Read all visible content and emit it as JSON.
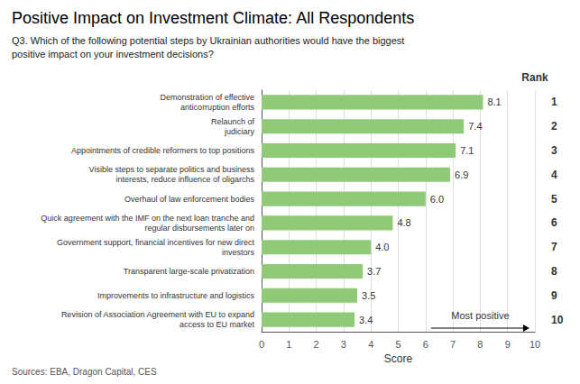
{
  "chart_data": {
    "type": "bar",
    "orientation": "horizontal",
    "title": "Positive Impact on Investment Climate: All Respondents",
    "subtitle": "Q3. Which of the following potential steps by Ukrainian authorities would have the biggest\npositive impact on your investment decisions?",
    "xlabel": "Score",
    "source": "Sources: EBA, Dragon Capital, CES",
    "categories": [
      "Demonstration of effective\nanticorruption efforts",
      "Relaunch of\njudiciary",
      "Appointments of credible reformers to top positions",
      "Visible steps to separate politics and business\ninterests, reduce influence of oligarchs",
      "Overhaul of law enforcement bodies",
      "Quick agreement with the IMF on the next loan tranche and\nregular disbursements later on",
      "Government support, financial incentives for new direct\ninvestors",
      "Transparent large-scale privatization",
      "Improvements to infrastructure and logistics",
      "Revision of Association Agreement with EU to expand\naccess to EU market"
    ],
    "values": [
      8.1,
      7.4,
      7.1,
      6.9,
      6.0,
      4.8,
      4.0,
      3.7,
      3.5,
      3.4
    ],
    "value_labels": [
      "8.1",
      "7.4",
      "7.1",
      "6.9",
      "6.0",
      "4.8",
      "4.0",
      "3.7",
      "3.5",
      "3.4"
    ],
    "data_labels": true,
    "rank_label": "Rank",
    "ranks": [
      1,
      2,
      3,
      4,
      5,
      6,
      7,
      8,
      9,
      10
    ],
    "color": "#90C978",
    "xlim": [
      0,
      10
    ],
    "xticks": [
      0,
      1,
      2,
      3,
      4,
      5,
      6,
      7,
      8,
      9,
      10
    ],
    "grid": true,
    "annotations": [
      {
        "text": "Most positive",
        "x_start": 6.2,
        "x_end": 9.8
      }
    ]
  }
}
